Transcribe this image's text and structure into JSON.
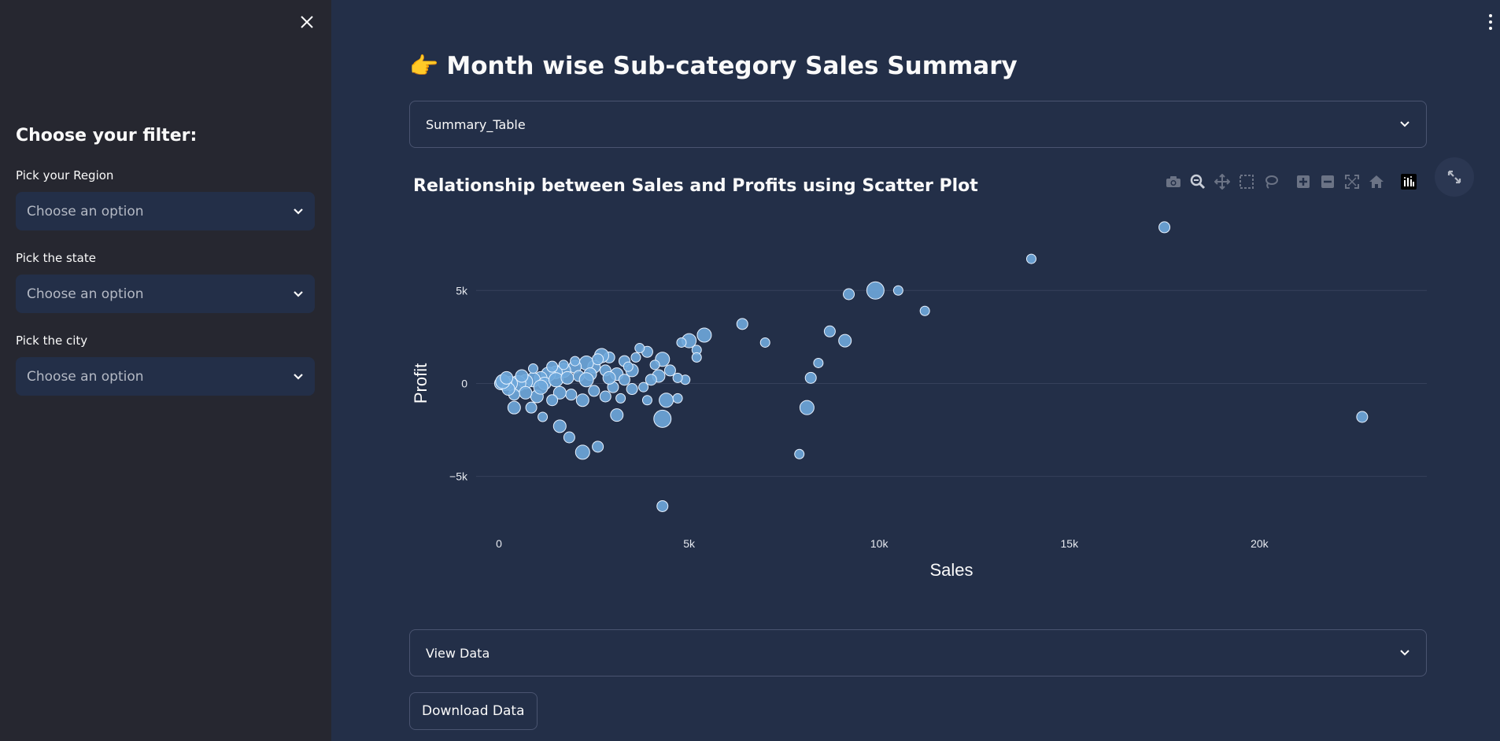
{
  "sidebar": {
    "heading": "Choose your filter:",
    "filters": [
      {
        "label": "Pick your Region",
        "placeholder": "Choose an option"
      },
      {
        "label": "Pick the state",
        "placeholder": "Choose an option"
      },
      {
        "label": "Pick the city",
        "placeholder": "Choose an option"
      }
    ]
  },
  "main": {
    "title_emoji": "👉",
    "title": "Month wise Sub-category Sales Summary",
    "expanders": [
      {
        "label": "Summary_Table"
      },
      {
        "label": "View Data"
      }
    ],
    "chart_title": "Relationship between Sales and Profits using Scatter Plot",
    "download_label": "Download Data"
  },
  "modebar_icons": [
    "camera-icon",
    "zoom-icon",
    "pan-icon",
    "box-select-icon",
    "lasso-select-icon",
    "zoom-in-icon",
    "zoom-out-icon",
    "autoscale-icon",
    "reset-axes-icon",
    "plotly-logo-icon"
  ],
  "colors": {
    "background": "#232f48",
    "sidebar": "#262730",
    "marker": "#6fa8dc",
    "marker_edge": "#e8f2ff",
    "grid": "#36415b"
  },
  "chart_data": {
    "type": "scatter",
    "title": "Relationship between Sales and Profits using Scatter Plot",
    "xlabel": "Sales",
    "ylabel": "Profit",
    "xlim": [
      -600,
      24400
    ],
    "ylim": [
      -7300,
      9200
    ],
    "x_ticks": [
      {
        "v": 0,
        "t": "0"
      },
      {
        "v": 5000,
        "t": "5k"
      },
      {
        "v": 10000,
        "t": "10k"
      },
      {
        "v": 15000,
        "t": "15k"
      },
      {
        "v": 20000,
        "t": "20k"
      }
    ],
    "y_ticks": [
      {
        "v": -5000,
        "t": "−5k"
      },
      {
        "v": 0,
        "t": "0"
      },
      {
        "v": 5000,
        "t": "5k"
      }
    ],
    "grid": true,
    "points": [
      {
        "x": 17500,
        "y": 8400,
        "s": 7
      },
      {
        "x": 14000,
        "y": 6700,
        "s": 6
      },
      {
        "x": 9900,
        "y": 5000,
        "s": 11
      },
      {
        "x": 10500,
        "y": 5000,
        "s": 6
      },
      {
        "x": 9200,
        "y": 4800,
        "s": 7
      },
      {
        "x": 11200,
        "y": 3900,
        "s": 6
      },
      {
        "x": 6400,
        "y": 3200,
        "s": 7
      },
      {
        "x": 8700,
        "y": 2800,
        "s": 7
      },
      {
        "x": 9100,
        "y": 2300,
        "s": 8
      },
      {
        "x": 7000,
        "y": 2200,
        "s": 6
      },
      {
        "x": 5400,
        "y": 2600,
        "s": 9
      },
      {
        "x": 5000,
        "y": 2300,
        "s": 9
      },
      {
        "x": 4800,
        "y": 2200,
        "s": 6
      },
      {
        "x": 5200,
        "y": 1800,
        "s": 6
      },
      {
        "x": 5200,
        "y": 1400,
        "s": 6
      },
      {
        "x": 8400,
        "y": 1100,
        "s": 6
      },
      {
        "x": 8200,
        "y": 300,
        "s": 7
      },
      {
        "x": 8100,
        "y": -1300,
        "s": 9
      },
      {
        "x": 7900,
        "y": -3800,
        "s": 6
      },
      {
        "x": 22700,
        "y": -1800,
        "s": 7
      },
      {
        "x": 4300,
        "y": -6600,
        "s": 7
      },
      {
        "x": 4300,
        "y": -1900,
        "s": 11
      },
      {
        "x": 3100,
        "y": -1700,
        "s": 8
      },
      {
        "x": 2600,
        "y": -3400,
        "s": 7
      },
      {
        "x": 2200,
        "y": -3700,
        "s": 9
      },
      {
        "x": 1850,
        "y": -2900,
        "s": 7
      },
      {
        "x": 1600,
        "y": -2300,
        "s": 8
      },
      {
        "x": 1150,
        "y": -1800,
        "s": 6
      },
      {
        "x": 850,
        "y": -1300,
        "s": 7
      },
      {
        "x": 400,
        "y": -1300,
        "s": 8
      },
      {
        "x": 4400,
        "y": -900,
        "s": 9
      },
      {
        "x": 3900,
        "y": -900,
        "s": 6
      },
      {
        "x": 4700,
        "y": -800,
        "s": 6
      },
      {
        "x": 4900,
        "y": 200,
        "s": 6
      },
      {
        "x": 4700,
        "y": 300,
        "s": 6
      },
      {
        "x": 4500,
        "y": 700,
        "s": 7
      },
      {
        "x": 4200,
        "y": 400,
        "s": 8
      },
      {
        "x": 3900,
        "y": 1700,
        "s": 7
      },
      {
        "x": 4300,
        "y": 1300,
        "s": 9
      },
      {
        "x": 3700,
        "y": 1900,
        "s": 6
      },
      {
        "x": 3300,
        "y": 1200,
        "s": 7
      },
      {
        "x": 3500,
        "y": 700,
        "s": 8
      },
      {
        "x": 2900,
        "y": 1400,
        "s": 7
      },
      {
        "x": 2700,
        "y": 1500,
        "s": 9
      },
      {
        "x": 2500,
        "y": 900,
        "s": 8
      },
      {
        "x": 2300,
        "y": 1100,
        "s": 9
      },
      {
        "x": 2000,
        "y": 900,
        "s": 8
      },
      {
        "x": 1700,
        "y": 700,
        "s": 9
      },
      {
        "x": 1500,
        "y": 600,
        "s": 8
      },
      {
        "x": 1300,
        "y": 500,
        "s": 9
      },
      {
        "x": 1100,
        "y": 300,
        "s": 8
      },
      {
        "x": 900,
        "y": 200,
        "s": 9
      },
      {
        "x": 700,
        "y": 100,
        "s": 9
      },
      {
        "x": 500,
        "y": 0,
        "s": 10
      },
      {
        "x": 300,
        "y": 0,
        "s": 9
      },
      {
        "x": 150,
        "y": 0,
        "s": 9
      },
      {
        "x": 50,
        "y": 0,
        "s": 8
      },
      {
        "x": 1200,
        "y": 0,
        "s": 8
      },
      {
        "x": 1500,
        "y": 200,
        "s": 9
      },
      {
        "x": 1800,
        "y": 300,
        "s": 8
      },
      {
        "x": 2100,
        "y": 400,
        "s": 7
      },
      {
        "x": 2400,
        "y": 500,
        "s": 8
      },
      {
        "x": 2800,
        "y": 700,
        "s": 7
      },
      {
        "x": 3100,
        "y": 500,
        "s": 8
      },
      {
        "x": 3300,
        "y": 200,
        "s": 7
      },
      {
        "x": 3500,
        "y": -300,
        "s": 7
      },
      {
        "x": 3000,
        "y": -200,
        "s": 7
      },
      {
        "x": 2500,
        "y": -400,
        "s": 7
      },
      {
        "x": 2200,
        "y": -900,
        "s": 8
      },
      {
        "x": 1900,
        "y": -600,
        "s": 7
      },
      {
        "x": 1600,
        "y": -500,
        "s": 8
      },
      {
        "x": 1400,
        "y": -900,
        "s": 7
      },
      {
        "x": 1000,
        "y": -700,
        "s": 8
      },
      {
        "x": 700,
        "y": -500,
        "s": 8
      },
      {
        "x": 400,
        "y": -600,
        "s": 7
      },
      {
        "x": 250,
        "y": -300,
        "s": 8
      },
      {
        "x": 100,
        "y": 100,
        "s": 9
      },
      {
        "x": 900,
        "y": 800,
        "s": 6
      },
      {
        "x": 1400,
        "y": 900,
        "s": 7
      },
      {
        "x": 2000,
        "y": 1200,
        "s": 6
      },
      {
        "x": 2600,
        "y": 1300,
        "s": 7
      },
      {
        "x": 3600,
        "y": 1400,
        "s": 6
      },
      {
        "x": 4100,
        "y": 1000,
        "s": 6
      },
      {
        "x": 3800,
        "y": -200,
        "s": 6
      },
      {
        "x": 2800,
        "y": -700,
        "s": 7
      },
      {
        "x": 3200,
        "y": -800,
        "s": 6
      },
      {
        "x": 1100,
        "y": -200,
        "s": 9
      },
      {
        "x": 600,
        "y": 400,
        "s": 8
      },
      {
        "x": 200,
        "y": 300,
        "s": 8
      },
      {
        "x": 1700,
        "y": 1000,
        "s": 6
      },
      {
        "x": 2300,
        "y": 200,
        "s": 9
      },
      {
        "x": 2900,
        "y": 300,
        "s": 8
      },
      {
        "x": 3400,
        "y": 900,
        "s": 6
      },
      {
        "x": 4000,
        "y": 200,
        "s": 7
      }
    ]
  }
}
